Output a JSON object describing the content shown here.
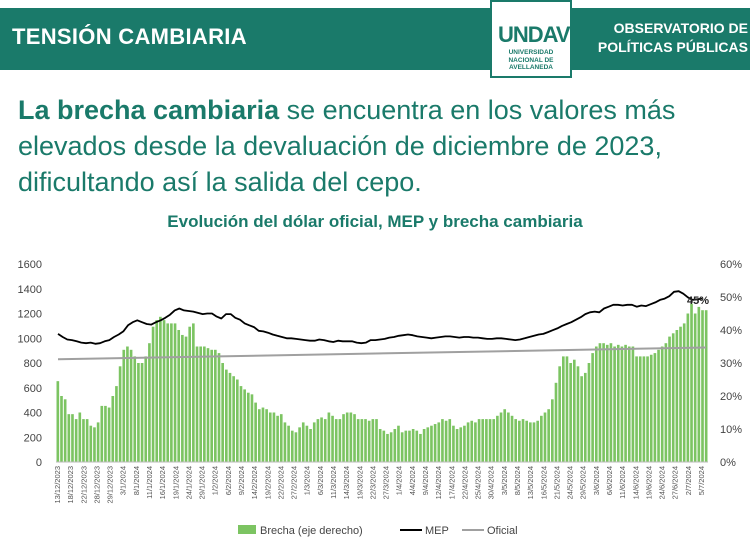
{
  "header": {
    "title": "TENSIÓN CAMBIARIA",
    "logo_mark": "UNDAV",
    "logo_sub": "UNIVERSIDAD NACIONAL DE AVELLANEDA",
    "observatory": "OBSERVATORIO DE POLÍTICAS PÚBLICAS"
  },
  "headline": {
    "bold": "La brecha cambiaria",
    "rest": " se encuentra en los valores más elevados desde la devaluación de diciembre de 2023, dificultando así la salida del cepo."
  },
  "colors": {
    "teal": "#1a7a6a",
    "bar": "#7cc462",
    "mep": "#000000",
    "oficial": "#a0a0a0"
  },
  "chart_data": {
    "type": "bar+line",
    "title": "Evolución del dólar oficial, MEP y brecha cambiaria",
    "x_ticks": [
      "13/12/2023",
      "18/12/2023",
      "22/12/2023",
      "28/12/2023",
      "29/12/2023",
      "3/1/2024",
      "8/1/2024",
      "11/1/2024",
      "16/1/2024",
      "19/1/2024",
      "24/1/2024",
      "29/1/2024",
      "1/2/2024",
      "6/2/2024",
      "9/2/2024",
      "14/2/2024",
      "19/2/2024",
      "22/2/2024",
      "27/2/2024",
      "1/3/2024",
      "6/3/2024",
      "11/3/2024",
      "14/3/2024",
      "19/3/2024",
      "22/3/2024",
      "27/3/2024",
      "1/4/2024",
      "4/4/2024",
      "9/4/2024",
      "12/4/2024",
      "17/4/2024",
      "22/4/2024",
      "25/4/2024",
      "30/4/2024",
      "3/5/2024",
      "8/5/2024",
      "13/5/2024",
      "16/5/2024",
      "21/5/2024",
      "24/5/2024",
      "29/5/2024",
      "3/6/2024",
      "6/6/2024",
      "11/6/2024",
      "14/6/2024",
      "19/6/2024",
      "24/6/2024",
      "27/6/2024",
      "2/7/2024",
      "5/7/2024"
    ],
    "y_left": {
      "min": 0,
      "max": 1600,
      "ticks": [
        0,
        200,
        400,
        600,
        800,
        1000,
        1200,
        1400,
        1600
      ]
    },
    "y_right": {
      "min": 0,
      "max": 60,
      "ticks": [
        "0%",
        "10%",
        "20%",
        "30%",
        "40%",
        "50%",
        "60%"
      ]
    },
    "annotation": "45%",
    "legend": [
      "Brecha (eje derecho)",
      "MEP",
      "Oficial"
    ],
    "legend_position": "bottom",
    "series": [
      {
        "name": "Brecha (eje derecho)",
        "axis": "right",
        "type": "bar",
        "values": [
          24.5,
          20,
          19,
          14.5,
          14.5,
          13,
          15,
          13,
          13,
          11,
          10.5,
          12,
          17,
          17,
          16.5,
          20,
          23,
          29,
          34,
          35,
          34,
          32,
          30,
          30,
          32,
          36,
          41,
          43,
          44,
          43,
          42,
          42,
          42,
          40,
          38.5,
          38,
          41,
          42,
          35,
          35,
          35,
          34.5,
          34,
          34,
          33,
          30,
          28,
          27,
          26,
          25,
          23,
          22,
          21,
          20.5,
          18,
          16,
          16.5,
          16,
          15,
          15,
          14,
          14.5,
          12,
          11,
          9.5,
          9,
          10.5,
          12,
          11,
          10,
          12,
          13,
          13.5,
          13,
          15,
          14,
          13,
          13,
          14.5,
          15,
          15,
          14.5,
          13,
          13,
          13,
          12.5,
          13,
          13,
          10,
          9.5,
          8.5,
          9,
          10,
          11,
          9,
          9.5,
          9.5,
          10,
          9.5,
          8.5,
          10,
          10.5,
          11,
          11.5,
          12,
          13,
          12.5,
          13,
          11,
          10,
          10.5,
          11,
          12,
          12.5,
          12,
          13,
          13,
          13,
          13,
          13,
          14,
          15,
          16,
          15,
          14,
          13,
          12.5,
          13,
          12.5,
          12,
          12,
          12.5,
          14,
          15,
          16,
          19,
          24,
          29,
          32,
          32,
          30,
          31,
          29,
          26,
          27,
          30,
          33,
          35,
          36,
          36,
          35.5,
          36,
          35,
          35.5,
          35,
          35.5,
          35,
          35,
          32,
          32,
          32,
          32,
          32.5,
          33,
          34,
          35,
          36,
          38,
          39,
          40,
          41,
          42,
          45,
          48,
          45,
          47,
          46,
          46
        ]
      },
      {
        "name": "MEP",
        "axis": "left",
        "type": "line",
        "values": [
          1035,
          1010,
          990,
          985,
          975,
          965,
          960,
          965,
          955,
          960,
          975,
          985,
          1010,
          1030,
          1055,
          1105,
          1130,
          1145,
          1130,
          1115,
          1110,
          1130,
          1145,
          1165,
          1190,
          1225,
          1240,
          1225,
          1220,
          1215,
          1205,
          1195,
          1200,
          1200,
          1175,
          1160,
          1195,
          1195,
          1165,
          1150,
          1120,
          1105,
          1090,
          1060,
          1055,
          1045,
          1030,
          1020,
          1010,
          1000,
          1000,
          995,
          990,
          985,
          980,
          980,
          990,
          985,
          975,
          970,
          980,
          975,
          975,
          975,
          965,
          960,
          965,
          985,
          985,
          990,
          995,
          1005,
          1010,
          1020,
          1025,
          1030,
          1025,
          1015,
          1010,
          1005,
          1000,
          1005,
          1010,
          1015,
          1015,
          1010,
          1005,
          1010,
          1010,
          1005,
          1005,
          1000,
          995,
          995,
          1000,
          1000,
          995,
          990,
          985,
          990,
          1000,
          1010,
          1020,
          1030,
          1035,
          1050,
          1065,
          1080,
          1100,
          1115,
          1130,
          1150,
          1170,
          1195,
          1210,
          1215,
          1210,
          1240,
          1255,
          1270,
          1270,
          1265,
          1270,
          1270,
          1255,
          1265,
          1260,
          1275,
          1290,
          1310,
          1320,
          1340,
          1375,
          1380,
          1360,
          1330,
          1310,
          1315,
          1320
        ]
      },
      {
        "name": "Oficial",
        "axis": "left",
        "type": "line",
        "values": [
          830,
          925
        ]
      }
    ]
  }
}
